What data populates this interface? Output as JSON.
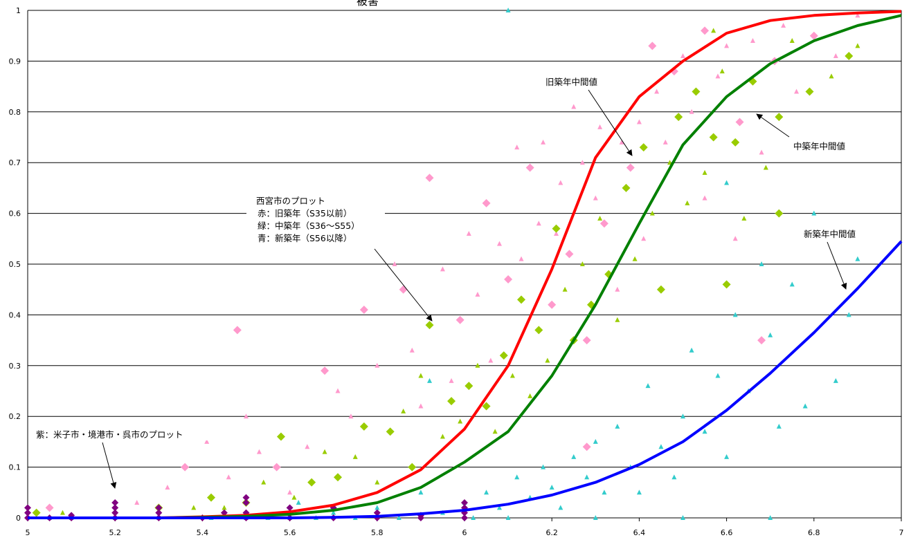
{
  "chart_data": {
    "type": "scatter",
    "title": "",
    "xlabel": "",
    "ylabel": "",
    "xlim": [
      5,
      7
    ],
    "ylim": [
      0,
      1
    ],
    "x_ticks": [
      "5",
      "5.2",
      "5.4",
      "5.6",
      "5.8",
      "6",
      "6.2",
      "6.4",
      "6.6",
      "6.8",
      "7"
    ],
    "y_ticks": [
      "0",
      "0.1",
      "0.2",
      "0.3",
      "0.4",
      "0.5",
      "0.6",
      "0.7",
      "0.8",
      "0.9",
      "1"
    ],
    "grid": "horizontal",
    "colors": {
      "old_curve": "#ff0000",
      "mid_curve": "#008000",
      "new_curve": "#0000ff",
      "pink": "#ff99cc",
      "lime": "#99cc00",
      "cyan": "#33cccc",
      "purple": "#800080"
    },
    "curves": [
      {
        "name": "旧築年中間値",
        "color": "#ff0000",
        "x": [
          5.0,
          5.1,
          5.2,
          5.3,
          5.4,
          5.5,
          5.6,
          5.7,
          5.8,
          5.9,
          6.0,
          6.1,
          6.2,
          6.3,
          6.4,
          6.5,
          6.6,
          6.7,
          6.8,
          6.9,
          7.0
        ],
        "y": [
          0.0,
          0.0,
          0.0,
          0.0,
          0.002,
          0.005,
          0.012,
          0.025,
          0.05,
          0.095,
          0.175,
          0.3,
          0.49,
          0.71,
          0.83,
          0.9,
          0.955,
          0.98,
          0.99,
          0.995,
          0.998
        ]
      },
      {
        "name": "中築年中間値",
        "color": "#008000",
        "x": [
          5.0,
          5.1,
          5.2,
          5.3,
          5.4,
          5.5,
          5.6,
          5.7,
          5.8,
          5.9,
          6.0,
          6.1,
          6.2,
          6.3,
          6.4,
          6.5,
          6.6,
          6.7,
          6.8,
          6.9,
          7.0
        ],
        "y": [
          0.0,
          0.0,
          0.0,
          0.0,
          0.001,
          0.003,
          0.007,
          0.015,
          0.03,
          0.06,
          0.11,
          0.17,
          0.28,
          0.42,
          0.58,
          0.735,
          0.83,
          0.895,
          0.94,
          0.97,
          0.99
        ]
      },
      {
        "name": "新築年中間値",
        "color": "#0000ff",
        "x": [
          5.0,
          5.1,
          5.2,
          5.3,
          5.4,
          5.5,
          5.6,
          5.7,
          5.8,
          5.9,
          6.0,
          6.1,
          6.2,
          6.3,
          6.4,
          6.5,
          6.6,
          6.7,
          6.8,
          6.9,
          7.0
        ],
        "y": [
          0.0,
          0.0,
          0.0,
          0.0,
          0.0,
          0.0,
          0.0,
          0.001,
          0.003,
          0.008,
          0.015,
          0.027,
          0.045,
          0.07,
          0.105,
          0.15,
          0.212,
          0.285,
          0.365,
          0.452,
          0.545
        ]
      }
    ],
    "scatter_groups": [
      {
        "color": "#ff99cc",
        "points": [
          [
            5.05,
            0.02
          ],
          [
            5.25,
            0.03
          ],
          [
            5.32,
            0.06
          ],
          [
            5.36,
            0.1
          ],
          [
            5.41,
            0.15
          ],
          [
            5.46,
            0.08
          ],
          [
            5.48,
            0.37
          ],
          [
            5.5,
            0.2
          ],
          [
            5.53,
            0.13
          ],
          [
            5.57,
            0.1
          ],
          [
            5.6,
            0.05
          ],
          [
            5.64,
            0.14
          ],
          [
            5.68,
            0.29
          ],
          [
            5.71,
            0.25
          ],
          [
            5.74,
            0.2
          ],
          [
            5.77,
            0.41
          ],
          [
            5.8,
            0.3
          ],
          [
            5.84,
            0.5
          ],
          [
            5.86,
            0.45
          ],
          [
            5.88,
            0.33
          ],
          [
            5.9,
            0.22
          ],
          [
            5.92,
            0.67
          ],
          [
            5.95,
            0.49
          ],
          [
            5.97,
            0.27
          ],
          [
            5.99,
            0.39
          ],
          [
            6.01,
            0.56
          ],
          [
            6.03,
            0.44
          ],
          [
            6.05,
            0.62
          ],
          [
            6.06,
            0.31
          ],
          [
            6.08,
            0.54
          ],
          [
            6.1,
            0.47
          ],
          [
            6.12,
            0.73
          ],
          [
            6.13,
            0.51
          ],
          [
            6.15,
            0.69
          ],
          [
            6.17,
            0.58
          ],
          [
            6.18,
            0.74
          ],
          [
            6.2,
            0.42
          ],
          [
            6.21,
            0.56
          ],
          [
            6.22,
            0.66
          ],
          [
            6.24,
            0.52
          ],
          [
            6.25,
            0.81
          ],
          [
            6.27,
            0.7
          ],
          [
            6.28,
            0.35
          ],
          [
            6.3,
            0.63
          ],
          [
            6.31,
            0.77
          ],
          [
            6.32,
            0.58
          ],
          [
            6.34,
            0.86
          ],
          [
            6.36,
            0.74
          ],
          [
            6.38,
            0.69
          ],
          [
            6.4,
            0.78
          ],
          [
            6.41,
            0.55
          ],
          [
            6.43,
            0.93
          ],
          [
            6.44,
            0.84
          ],
          [
            6.46,
            0.74
          ],
          [
            6.48,
            0.88
          ],
          [
            6.5,
            0.91
          ],
          [
            6.52,
            0.8
          ],
          [
            6.55,
            0.96
          ],
          [
            6.58,
            0.87
          ],
          [
            6.6,
            0.93
          ],
          [
            6.63,
            0.78
          ],
          [
            6.66,
            0.94
          ],
          [
            6.68,
            0.72
          ],
          [
            6.71,
            0.9
          ],
          [
            6.73,
            0.97
          ],
          [
            6.76,
            0.84
          ],
          [
            6.8,
            0.95
          ],
          [
            6.85,
            0.91
          ],
          [
            6.9,
            0.99
          ],
          [
            6.68,
            0.35
          ],
          [
            6.55,
            0.63
          ],
          [
            6.62,
            0.55
          ],
          [
            6.28,
            0.14
          ],
          [
            6.35,
            0.45
          ]
        ]
      },
      {
        "color": "#99cc00",
        "points": [
          [
            5.02,
            0.01
          ],
          [
            5.08,
            0.01
          ],
          [
            5.3,
            0.02
          ],
          [
            5.38,
            0.02
          ],
          [
            5.42,
            0.04
          ],
          [
            5.45,
            0.02
          ],
          [
            5.5,
            0.03
          ],
          [
            5.54,
            0.07
          ],
          [
            5.58,
            0.16
          ],
          [
            5.61,
            0.04
          ],
          [
            5.65,
            0.07
          ],
          [
            5.68,
            0.13
          ],
          [
            5.71,
            0.08
          ],
          [
            5.75,
            0.12
          ],
          [
            5.77,
            0.18
          ],
          [
            5.8,
            0.07
          ],
          [
            5.83,
            0.17
          ],
          [
            5.86,
            0.21
          ],
          [
            5.88,
            0.1
          ],
          [
            5.9,
            0.28
          ],
          [
            5.92,
            0.38
          ],
          [
            5.95,
            0.16
          ],
          [
            5.97,
            0.23
          ],
          [
            5.99,
            0.19
          ],
          [
            6.01,
            0.26
          ],
          [
            6.03,
            0.3
          ],
          [
            6.05,
            0.22
          ],
          [
            6.07,
            0.17
          ],
          [
            6.09,
            0.32
          ],
          [
            6.11,
            0.28
          ],
          [
            6.13,
            0.43
          ],
          [
            6.15,
            0.24
          ],
          [
            6.17,
            0.37
          ],
          [
            6.19,
            0.31
          ],
          [
            6.21,
            0.57
          ],
          [
            6.23,
            0.45
          ],
          [
            6.25,
            0.35
          ],
          [
            6.27,
            0.5
          ],
          [
            6.29,
            0.42
          ],
          [
            6.31,
            0.59
          ],
          [
            6.33,
            0.48
          ],
          [
            6.35,
            0.39
          ],
          [
            6.37,
            0.65
          ],
          [
            6.39,
            0.51
          ],
          [
            6.41,
            0.73
          ],
          [
            6.43,
            0.6
          ],
          [
            6.45,
            0.45
          ],
          [
            6.47,
            0.7
          ],
          [
            6.49,
            0.79
          ],
          [
            6.51,
            0.62
          ],
          [
            6.53,
            0.84
          ],
          [
            6.55,
            0.68
          ],
          [
            6.57,
            0.75
          ],
          [
            6.59,
            0.88
          ],
          [
            6.62,
            0.74
          ],
          [
            6.64,
            0.59
          ],
          [
            6.66,
            0.86
          ],
          [
            6.69,
            0.69
          ],
          [
            6.72,
            0.79
          ],
          [
            6.75,
            0.94
          ],
          [
            6.79,
            0.84
          ],
          [
            6.84,
            0.87
          ],
          [
            6.88,
            0.91
          ],
          [
            6.9,
            0.93
          ],
          [
            6.6,
            0.46
          ],
          [
            6.57,
            0.96
          ],
          [
            6.72,
            0.6
          ]
        ]
      },
      {
        "color": "#33cccc",
        "points": [
          [
            5.05,
            0.0
          ],
          [
            5.1,
            0.0
          ],
          [
            5.2,
            0.0
          ],
          [
            5.3,
            0.0
          ],
          [
            5.42,
            0.0
          ],
          [
            5.5,
            0.0
          ],
          [
            5.55,
            0.0
          ],
          [
            5.6,
            0.0
          ],
          [
            5.62,
            0.03
          ],
          [
            5.66,
            0.0
          ],
          [
            5.7,
            0.01
          ],
          [
            5.75,
            0.0
          ],
          [
            5.8,
            0.02
          ],
          [
            5.85,
            0.0
          ],
          [
            5.9,
            0.05
          ],
          [
            5.92,
            0.27
          ],
          [
            5.95,
            0.01
          ],
          [
            6.0,
            0.03
          ],
          [
            6.02,
            0.0
          ],
          [
            6.05,
            0.05
          ],
          [
            6.08,
            0.02
          ],
          [
            6.1,
            0.0
          ],
          [
            6.12,
            0.08
          ],
          [
            6.15,
            0.04
          ],
          [
            6.18,
            0.1
          ],
          [
            6.2,
            0.06
          ],
          [
            6.22,
            0.02
          ],
          [
            6.25,
            0.12
          ],
          [
            6.28,
            0.08
          ],
          [
            6.3,
            0.15
          ],
          [
            6.32,
            0.05
          ],
          [
            6.35,
            0.18
          ],
          [
            6.38,
            0.1
          ],
          [
            6.4,
            0.05
          ],
          [
            6.42,
            0.26
          ],
          [
            6.45,
            0.14
          ],
          [
            6.48,
            0.08
          ],
          [
            6.5,
            0.2
          ],
          [
            6.52,
            0.33
          ],
          [
            6.55,
            0.17
          ],
          [
            6.58,
            0.28
          ],
          [
            6.6,
            0.12
          ],
          [
            6.62,
            0.4
          ],
          [
            6.65,
            0.25
          ],
          [
            6.68,
            0.5
          ],
          [
            6.7,
            0.36
          ],
          [
            6.72,
            0.18
          ],
          [
            6.75,
            0.46
          ],
          [
            6.78,
            0.22
          ],
          [
            6.8,
            0.6
          ],
          [
            6.85,
            0.27
          ],
          [
            6.88,
            0.4
          ],
          [
            6.9,
            0.51
          ],
          [
            6.7,
            0.0
          ],
          [
            6.5,
            0.0
          ],
          [
            6.3,
            0.0
          ],
          [
            6.1,
            1.0
          ],
          [
            6.6,
            0.66
          ]
        ]
      },
      {
        "color": "#800080",
        "points": [
          [
            5.0,
            0.0
          ],
          [
            5.0,
            0.01
          ],
          [
            5.0,
            0.02
          ],
          [
            5.05,
            0.0
          ],
          [
            5.1,
            0.0
          ],
          [
            5.1,
            0.005
          ],
          [
            5.2,
            0.0
          ],
          [
            5.2,
            0.01
          ],
          [
            5.2,
            0.02
          ],
          [
            5.2,
            0.03
          ],
          [
            5.3,
            0.0
          ],
          [
            5.3,
            0.01
          ],
          [
            5.3,
            0.02
          ],
          [
            5.4,
            0.0
          ],
          [
            5.45,
            0.01
          ],
          [
            5.5,
            0.0
          ],
          [
            5.5,
            0.01
          ],
          [
            5.5,
            0.03
          ],
          [
            5.5,
            0.04
          ],
          [
            5.6,
            0.0
          ],
          [
            5.6,
            0.02
          ],
          [
            5.7,
            0.0
          ],
          [
            5.7,
            0.02
          ],
          [
            5.8,
            0.0
          ],
          [
            5.8,
            0.01
          ],
          [
            5.9,
            0.0
          ],
          [
            5.9,
            0.005
          ],
          [
            6.0,
            0.0
          ],
          [
            6.0,
            0.01
          ],
          [
            6.0,
            0.02
          ],
          [
            6.0,
            0.03
          ]
        ]
      }
    ],
    "annotations": [
      {
        "lines": [
          "旧築年中間値"
        ]
      },
      {
        "lines": [
          "中築年中間値"
        ]
      },
      {
        "lines": [
          "新築年中間値"
        ]
      },
      {
        "lines": [
          "西宮市のプロット",
          "赤：旧築年（S35以前）",
          "緑：中築年（S36〜S55）",
          "青：新築年（S56以降）"
        ]
      },
      {
        "lines": [
          "紫：米子市・境港市・呉市のプロット"
        ]
      }
    ],
    "title_fragment": "被害"
  }
}
